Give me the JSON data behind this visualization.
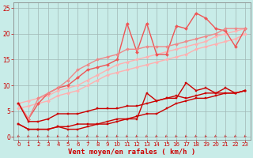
{
  "background_color": "#c8ece8",
  "grid_color": "#a0b8b5",
  "xlabel": "Vent moyen/en rafales ( km/h )",
  "xlabel_color": "#cc0000",
  "tick_color": "#cc0000",
  "xlim": [
    -0.5,
    23.5
  ],
  "ylim": [
    -0.5,
    26
  ],
  "yticks": [
    0,
    5,
    10,
    15,
    20,
    25
  ],
  "xticks": [
    0,
    1,
    2,
    3,
    4,
    5,
    6,
    7,
    8,
    9,
    10,
    11,
    12,
    13,
    14,
    15,
    16,
    17,
    18,
    19,
    20,
    21,
    22,
    23
  ],
  "lines": [
    {
      "x": [
        0,
        1,
        2,
        3,
        4,
        5,
        6,
        7,
        8,
        9,
        10,
        11,
        12,
        13,
        14,
        15,
        16,
        17,
        18,
        19,
        20,
        21,
        22,
        23
      ],
      "y": [
        6.5,
        7.0,
        7.5,
        8.0,
        9.0,
        9.5,
        10.0,
        11.0,
        12.0,
        13.0,
        14.0,
        14.5,
        15.0,
        15.5,
        16.0,
        16.5,
        17.0,
        17.5,
        18.0,
        18.5,
        19.5,
        20.0,
        20.5,
        21.0
      ],
      "color": "#ffb0b0",
      "lw": 1.0,
      "marker": "D",
      "ms": 2.0,
      "zorder": 2
    },
    {
      "x": [
        0,
        1,
        2,
        3,
        4,
        5,
        6,
        7,
        8,
        9,
        10,
        11,
        12,
        13,
        14,
        15,
        16,
        17,
        18,
        19,
        20,
        21,
        22,
        23
      ],
      "y": [
        5.5,
        6.0,
        6.5,
        7.0,
        8.0,
        8.5,
        9.0,
        10.0,
        11.0,
        12.0,
        12.5,
        13.0,
        13.5,
        14.0,
        14.5,
        15.0,
        15.5,
        16.0,
        17.0,
        17.5,
        18.0,
        18.5,
        19.0,
        20.0
      ],
      "color": "#ffb0b0",
      "lw": 1.0,
      "marker": "D",
      "ms": 2.0,
      "zorder": 2
    },
    {
      "x": [
        0,
        1,
        2,
        3,
        4,
        5,
        6,
        7,
        8,
        9,
        10,
        11,
        12,
        13,
        14,
        15,
        16,
        17,
        18,
        19,
        20,
        21,
        22,
        23
      ],
      "y": [
        6.5,
        3.5,
        6.5,
        8.5,
        9.5,
        10.0,
        11.5,
        13.0,
        13.5,
        14.0,
        15.0,
        22.0,
        16.5,
        22.0,
        16.0,
        16.0,
        21.5,
        21.0,
        24.0,
        23.0,
        21.0,
        20.5,
        17.5,
        21.0
      ],
      "color": "#ee5555",
      "lw": 1.0,
      "marker": "D",
      "ms": 2.0,
      "zorder": 3
    },
    {
      "x": [
        0,
        1,
        2,
        3,
        4,
        5,
        6,
        7,
        8,
        9,
        10,
        11,
        12,
        13,
        14,
        15,
        16,
        17,
        18,
        19,
        20,
        21,
        22,
        23
      ],
      "y": [
        6.5,
        3.5,
        7.5,
        8.5,
        9.5,
        11.0,
        13.0,
        14.0,
        15.0,
        15.5,
        16.0,
        17.0,
        17.0,
        17.5,
        17.5,
        17.5,
        18.0,
        18.5,
        19.0,
        19.5,
        20.0,
        21.0,
        21.0,
        21.0
      ],
      "color": "#ee8888",
      "lw": 1.0,
      "marker": "D",
      "ms": 2.0,
      "zorder": 3
    },
    {
      "x": [
        0,
        1,
        2,
        3,
        4,
        5,
        6,
        7,
        8,
        9,
        10,
        11,
        12,
        13,
        14,
        15,
        16,
        17,
        18,
        19,
        20,
        21,
        22,
        23
      ],
      "y": [
        2.5,
        1.5,
        1.5,
        1.5,
        2.0,
        1.5,
        1.5,
        2.0,
        2.5,
        3.0,
        3.5,
        3.5,
        3.5,
        8.5,
        7.0,
        7.5,
        7.5,
        10.5,
        9.0,
        9.5,
        8.5,
        9.5,
        8.5,
        9.0
      ],
      "color": "#cc0000",
      "lw": 1.0,
      "marker": "s",
      "ms": 2.0,
      "zorder": 4
    },
    {
      "x": [
        0,
        1,
        2,
        3,
        4,
        5,
        6,
        7,
        8,
        9,
        10,
        11,
        12,
        13,
        14,
        15,
        16,
        17,
        18,
        19,
        20,
        21,
        22,
        23
      ],
      "y": [
        6.5,
        3.0,
        3.0,
        3.5,
        4.5,
        4.5,
        4.5,
        5.0,
        5.5,
        5.5,
        5.5,
        6.0,
        6.0,
        6.5,
        7.0,
        7.5,
        8.0,
        7.5,
        8.0,
        8.5,
        8.5,
        8.5,
        8.5,
        9.0
      ],
      "color": "#cc0000",
      "lw": 1.0,
      "marker": "s",
      "ms": 2.0,
      "zorder": 4
    },
    {
      "x": [
        0,
        1,
        2,
        3,
        4,
        5,
        6,
        7,
        8,
        9,
        10,
        11,
        12,
        13,
        14,
        15,
        16,
        17,
        18,
        19,
        20,
        21,
        22,
        23
      ],
      "y": [
        2.5,
        1.5,
        1.5,
        1.5,
        2.0,
        2.0,
        2.5,
        2.5,
        2.5,
        2.5,
        3.0,
        3.5,
        4.0,
        4.5,
        4.5,
        5.5,
        6.5,
        7.0,
        7.5,
        7.5,
        8.0,
        8.5,
        8.5,
        9.0
      ],
      "color": "#cc0000",
      "lw": 1.0,
      "marker": "s",
      "ms": 2.0,
      "zorder": 4
    }
  ]
}
